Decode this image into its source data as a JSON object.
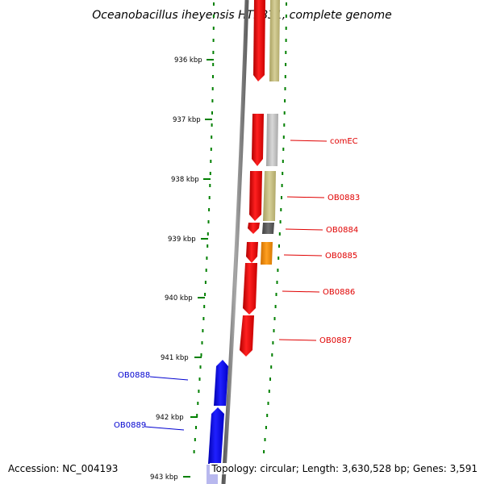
{
  "title": "Oceanobacillus iheyensis HTE831, complete genome",
  "footer": {
    "accession": "Accession: NC_004193",
    "stats": "Topology: circular; Length: 3,630,528 bp; Genes: 3,591"
  },
  "colors": {
    "forward_strand": "#ee0000",
    "reverse_strand": "#0000ee",
    "backbone": "#808080",
    "ticks": "#008000",
    "cog_tan": "#c8c084",
    "cog_gray": "#c0c0c0",
    "cog_dark": "#606060",
    "cog_orange": "#f0900a"
  },
  "ticks": [
    {
      "label": "936 kbp"
    },
    {
      "label": "937 kbp"
    },
    {
      "label": "938 kbp"
    },
    {
      "label": "939 kbp"
    },
    {
      "label": "940 kbp"
    },
    {
      "label": "941 kbp"
    },
    {
      "label": "942 kbp"
    },
    {
      "label": "943 kbp"
    }
  ],
  "genes": [
    {
      "id": "g1",
      "strand": "forward",
      "category_color": "cog_tan"
    },
    {
      "id": "comEC",
      "label": "comEC",
      "strand": "forward",
      "category_color": "cog_gray"
    },
    {
      "id": "OB0883",
      "label": "OB0883",
      "strand": "forward",
      "category_color": "cog_tan"
    },
    {
      "id": "OB0884",
      "label": "OB0884",
      "strand": "forward",
      "category_color": "cog_dark"
    },
    {
      "id": "OB0885",
      "label": "OB0885",
      "strand": "forward",
      "category_color": "cog_orange"
    },
    {
      "id": "OB0886",
      "label": "OB0886",
      "strand": "forward"
    },
    {
      "id": "OB0887",
      "label": "OB0887",
      "strand": "forward"
    },
    {
      "id": "OB0888",
      "label": "OB0888",
      "strand": "reverse"
    },
    {
      "id": "OB0889",
      "label": "OB0889",
      "strand": "reverse"
    }
  ]
}
